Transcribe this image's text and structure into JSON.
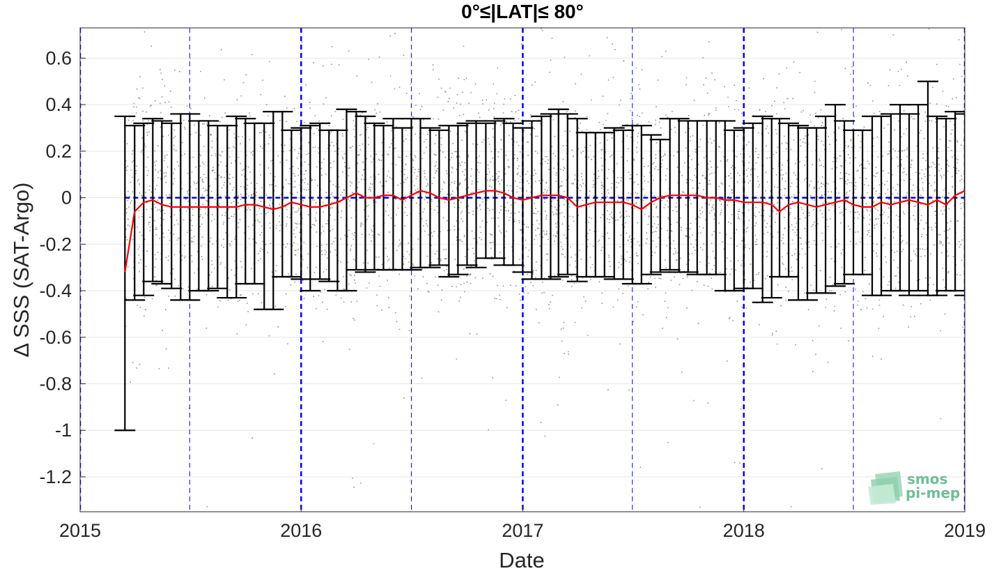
{
  "chart_data": {
    "type": "scatter",
    "title": "0°≤|LAT|≤ 80°",
    "xlabel": "Date",
    "ylabel": "Δ SSS (SAT-Argo)",
    "xlim": [
      "2015-01-01",
      "2019-01-01"
    ],
    "ylim": [
      -1.35,
      0.73
    ],
    "x_ticks": [
      "2015",
      "2016",
      "2017",
      "2018",
      "2019"
    ],
    "y_ticks": [
      "0.6",
      "0.4",
      "0.2",
      "0",
      "-0.2",
      "-0.4",
      "-0.6",
      "-0.8",
      "-1",
      "-1.2"
    ],
    "y_tick_values": [
      0.6,
      0.4,
      0.2,
      0,
      -0.2,
      -0.4,
      -0.6,
      -0.8,
      -1,
      -1.2
    ],
    "grid": true,
    "colors": {
      "scatter": "#808080",
      "median_line": "#ff0000",
      "error_bars": "#000000",
      "reference_lines": "#0000ff",
      "logo": "#6fbf94"
    },
    "reference_lines": {
      "horizontal_y": 0,
      "year_boundaries": [
        "2015-01-01",
        "2016-01-01",
        "2017-01-01",
        "2018-01-01",
        "2019-01-01"
      ],
      "half_year_marks": [
        "2015-07-01",
        "2016-07-01",
        "2017-07-01",
        "2018-07-01"
      ]
    },
    "series": [
      {
        "type": "errorbar",
        "dates": [
          "2015-03-16",
          "2015-04-01",
          "2015-04-16",
          "2015-05-01",
          "2015-05-16",
          "2015-06-01",
          "2015-06-16",
          "2015-07-01",
          "2015-07-16",
          "2015-08-01",
          "2015-08-16",
          "2015-09-01",
          "2015-09-16",
          "2015-10-01",
          "2015-10-16",
          "2015-11-01",
          "2015-11-16",
          "2015-12-01",
          "2015-12-16",
          "2016-01-01",
          "2016-01-16",
          "2016-02-01",
          "2016-02-16",
          "2016-03-01",
          "2016-03-16",
          "2016-04-01",
          "2016-04-16",
          "2016-05-01",
          "2016-05-16",
          "2016-06-01",
          "2016-06-16",
          "2016-07-01",
          "2016-07-16",
          "2016-08-01",
          "2016-08-16",
          "2016-09-01",
          "2016-09-16",
          "2016-10-01",
          "2016-10-16",
          "2016-11-01",
          "2016-11-16",
          "2016-12-01",
          "2016-12-16",
          "2017-01-01",
          "2017-01-16",
          "2017-02-01",
          "2017-02-16",
          "2017-03-01",
          "2017-03-16",
          "2017-04-01",
          "2017-04-16",
          "2017-05-01",
          "2017-05-16",
          "2017-06-01",
          "2017-06-16",
          "2017-07-01",
          "2017-07-16",
          "2017-08-01",
          "2017-08-16",
          "2017-09-01",
          "2017-09-16",
          "2017-10-01",
          "2017-10-16",
          "2017-11-01",
          "2017-11-16",
          "2017-12-01",
          "2017-12-16",
          "2018-01-01",
          "2018-01-16",
          "2018-02-01",
          "2018-02-16",
          "2018-03-01",
          "2018-03-16",
          "2018-04-01",
          "2018-04-16",
          "2018-05-01",
          "2018-05-16",
          "2018-06-01",
          "2018-06-16",
          "2018-07-01",
          "2018-07-16",
          "2018-08-01",
          "2018-08-16",
          "2018-09-01",
          "2018-09-16",
          "2018-10-01",
          "2018-10-16",
          "2018-11-01",
          "2018-11-16",
          "2018-12-01",
          "2018-12-16",
          "2019-01-01"
        ],
        "median": [
          -0.32,
          -0.06,
          -0.02,
          -0.01,
          -0.03,
          -0.04,
          -0.04,
          -0.04,
          -0.04,
          -0.04,
          -0.04,
          -0.04,
          -0.04,
          -0.03,
          -0.03,
          -0.04,
          -0.05,
          -0.04,
          -0.02,
          -0.03,
          -0.04,
          -0.04,
          -0.03,
          -0.02,
          0.0,
          0.02,
          0.0,
          0.0,
          0.01,
          0.01,
          -0.01,
          0.01,
          0.03,
          0.02,
          0.0,
          -0.01,
          0.0,
          0.01,
          0.02,
          0.03,
          0.03,
          0.02,
          0.0,
          -0.01,
          0.0,
          0.01,
          0.01,
          0.01,
          0.0,
          -0.04,
          -0.03,
          -0.02,
          -0.02,
          -0.02,
          -0.02,
          -0.03,
          -0.05,
          -0.02,
          0.0,
          0.01,
          0.01,
          0.01,
          0.01,
          0.0,
          0.0,
          -0.01,
          -0.01,
          -0.02,
          -0.02,
          -0.02,
          -0.03,
          -0.06,
          -0.03,
          -0.02,
          -0.03,
          -0.04,
          -0.03,
          -0.02,
          -0.01,
          -0.03,
          -0.04,
          -0.04,
          -0.02,
          -0.03,
          -0.02,
          -0.01,
          -0.02,
          -0.03,
          -0.01,
          -0.03,
          0.01,
          0.03
        ],
        "upper": [
          0.35,
          0.31,
          0.32,
          0.34,
          0.33,
          0.32,
          0.36,
          0.36,
          0.33,
          0.33,
          0.31,
          0.31,
          0.35,
          0.34,
          0.32,
          0.32,
          0.37,
          0.37,
          0.29,
          0.3,
          0.31,
          0.32,
          0.29,
          0.29,
          0.38,
          0.37,
          0.35,
          0.32,
          0.31,
          0.34,
          0.3,
          0.34,
          0.34,
          0.3,
          0.29,
          0.31,
          0.31,
          0.32,
          0.33,
          0.32,
          0.33,
          0.34,
          0.32,
          0.3,
          0.33,
          0.35,
          0.36,
          0.38,
          0.36,
          0.34,
          0.28,
          0.28,
          0.28,
          0.3,
          0.29,
          0.31,
          0.31,
          0.27,
          0.25,
          0.34,
          0.34,
          0.33,
          0.33,
          0.33,
          0.33,
          0.33,
          0.29,
          0.3,
          0.32,
          0.35,
          0.34,
          0.34,
          0.32,
          0.31,
          0.3,
          0.3,
          0.35,
          0.4,
          0.33,
          0.29,
          0.29,
          0.35,
          0.35,
          0.36,
          0.4,
          0.36,
          0.4,
          0.5,
          0.35,
          0.34,
          0.37,
          0.36
        ],
        "lower": [
          -1.0,
          -0.44,
          -0.42,
          -0.36,
          -0.37,
          -0.39,
          -0.44,
          -0.44,
          -0.4,
          -0.4,
          -0.39,
          -0.43,
          -0.43,
          -0.37,
          -0.37,
          -0.48,
          -0.48,
          -0.34,
          -0.34,
          -0.35,
          -0.4,
          -0.35,
          -0.36,
          -0.4,
          -0.4,
          -0.31,
          -0.32,
          -0.31,
          -0.31,
          -0.31,
          -0.31,
          -0.31,
          -0.3,
          -0.3,
          -0.29,
          -0.34,
          -0.33,
          -0.29,
          -0.3,
          -0.26,
          -0.26,
          -0.29,
          -0.29,
          -0.32,
          -0.35,
          -0.35,
          -0.35,
          -0.34,
          -0.33,
          -0.36,
          -0.34,
          -0.34,
          -0.34,
          -0.35,
          -0.35,
          -0.37,
          -0.37,
          -0.33,
          -0.32,
          -0.31,
          -0.32,
          -0.32,
          -0.33,
          -0.33,
          -0.33,
          -0.4,
          -0.4,
          -0.39,
          -0.39,
          -0.45,
          -0.43,
          -0.34,
          -0.34,
          -0.44,
          -0.44,
          -0.41,
          -0.41,
          -0.38,
          -0.37,
          -0.33,
          -0.33,
          -0.42,
          -0.42,
          -0.4,
          -0.4,
          -0.42,
          -0.4,
          -0.42,
          -0.42,
          -0.4,
          -0.4,
          -0.42
        ]
      }
    ],
    "scatter_density": {
      "core_range": [
        -0.45,
        0.45
      ],
      "spread_sd": 0.22,
      "x_start": "2015-03-16"
    },
    "logo": {
      "line1": "smos",
      "line2": "pi-mep"
    }
  }
}
